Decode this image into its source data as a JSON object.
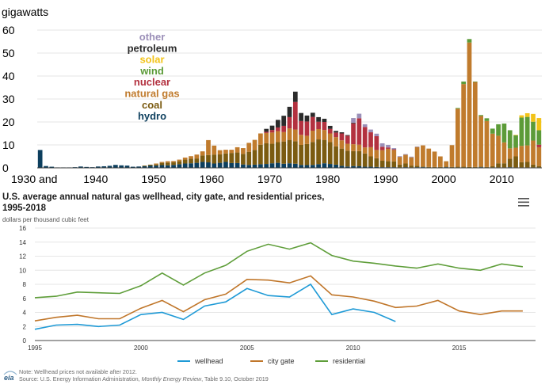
{
  "chart_data": [
    {
      "type": "bar",
      "stacked": true,
      "ylabel": "gigawatts",
      "ylim": [
        0,
        60
      ],
      "yticks": [
        0,
        10,
        20,
        30,
        40,
        50,
        60
      ],
      "xticks": [
        "1930 and",
        "1940",
        "1950",
        "1960",
        "1970",
        "1980",
        "1990",
        "2000",
        "2010"
      ],
      "legend_position": "top-left",
      "grid": "horizontal",
      "categories": [
        1930,
        1931,
        1932,
        1933,
        1934,
        1935,
        1936,
        1937,
        1938,
        1939,
        1940,
        1941,
        1942,
        1943,
        1944,
        1945,
        1946,
        1947,
        1948,
        1949,
        1950,
        1951,
        1952,
        1953,
        1954,
        1955,
        1956,
        1957,
        1958,
        1959,
        1960,
        1961,
        1962,
        1963,
        1964,
        1965,
        1966,
        1967,
        1968,
        1969,
        1970,
        1971,
        1972,
        1973,
        1974,
        1975,
        1976,
        1977,
        1978,
        1979,
        1980,
        1981,
        1982,
        1983,
        1984,
        1985,
        1986,
        1987,
        1988,
        1989,
        1990,
        1991,
        1992,
        1993,
        1994,
        1995,
        1996,
        1997,
        1998,
        1999,
        2000,
        2001,
        2002,
        2003,
        2004,
        2005,
        2006,
        2007,
        2008,
        2009,
        2010,
        2011,
        2012,
        2013,
        2014,
        2015,
        2016
      ],
      "series": [
        {
          "name": "hydro",
          "color": "#0d3f5e",
          "values": [
            7.8,
            0.8,
            0.5,
            0.2,
            0.2,
            0.2,
            0.3,
            0.6,
            0.4,
            0.3,
            0.6,
            0.7,
            0.9,
            1.3,
            1.1,
            1.0,
            0.5,
            0.6,
            0.7,
            1.0,
            1.0,
            1.2,
            1.1,
            1.3,
            1.6,
            1.9,
            2.0,
            2.2,
            2.6,
            2.4,
            1.9,
            2.2,
            2.6,
            2.1,
            2.1,
            1.5,
            1.3,
            1.4,
            1.6,
            1.7,
            2.0,
            2.2,
            1.8,
            2.0,
            1.8,
            1.3,
            1.2,
            1.3,
            1.6,
            2.0,
            1.7,
            1.4,
            0.9,
            0.6,
            0.8,
            0.7,
            0.5,
            0.5,
            0.4,
            0.3,
            0.3,
            0.3,
            0.2,
            0.3,
            0.2,
            0.3,
            0.3,
            0.2,
            0.2,
            0.2,
            0.3,
            0.2,
            0.2,
            0.2,
            0.1,
            0.2,
            0.3,
            0.2,
            0.2,
            0.2,
            0.2,
            0.3,
            0.2,
            0.2,
            0.2,
            0.2,
            0.2
          ]
        },
        {
          "name": "coal",
          "color": "#7b5b11",
          "values": [
            0,
            0,
            0,
            0,
            0,
            0,
            0,
            0,
            0,
            0,
            0,
            0,
            0,
            0,
            0,
            0,
            0,
            0,
            0.3,
            0.4,
            0.5,
            1.0,
            1.2,
            1.2,
            1.3,
            1.7,
            2.0,
            1.9,
            2.8,
            3.2,
            3.9,
            3.7,
            3.7,
            4.4,
            4.6,
            4.6,
            5.7,
            6.4,
            8.5,
            9.0,
            8.5,
            9.0,
            9.7,
            10.2,
            9.8,
            8.7,
            9.2,
            10.0,
            10.8,
            10.2,
            9.5,
            8.0,
            7.5,
            6.9,
            6.5,
            6.6,
            5.8,
            4.5,
            3.8,
            2.8,
            2.6,
            2.5,
            1.2,
            1.6,
            0.8,
            0.6,
            0.3,
            0.2,
            0.2,
            0.2,
            0.2,
            0.2,
            0.3,
            0.3,
            0.3,
            0.2,
            0.3,
            0.2,
            0.5,
            1.8,
            1.8,
            3.7,
            4.8,
            2.3,
            2.4,
            1.2,
            0.6
          ]
        },
        {
          "name": "natural gas",
          "color": "#c07b2d",
          "values": [
            0,
            0,
            0,
            0,
            0,
            0,
            0,
            0,
            0,
            0,
            0,
            0,
            0,
            0,
            0,
            0,
            0,
            0,
            0,
            0,
            0.4,
            0.4,
            0.6,
            0.5,
            0.7,
            0.9,
            1.1,
            1.7,
            1.8,
            6.5,
            3.9,
            1.8,
            1.6,
            1.4,
            2.3,
            2.5,
            3.9,
            4.4,
            4.9,
            4.5,
            4.9,
            4.8,
            4.1,
            5.0,
            5.1,
            4.4,
            3.6,
            4.9,
            4.5,
            4.3,
            3.8,
            4.0,
            3.6,
            3.0,
            3.0,
            2.8,
            2.6,
            4.0,
            3.6,
            4.6,
            5.4,
            5.0,
            3.4,
            3.8,
            3.6,
            8.2,
            9.2,
            8.0,
            6.7,
            4.6,
            2.4,
            9.5,
            25.3,
            36.0,
            54.2,
            37.0,
            22.0,
            20.0,
            14.2,
            12.0,
            9.1,
            4.5,
            3.8,
            7.1,
            7.2,
            10.5,
            8.2
          ]
        },
        {
          "name": "nuclear",
          "color": "#b3313f",
          "values": [
            0,
            0,
            0,
            0,
            0,
            0,
            0,
            0,
            0,
            0,
            0,
            0,
            0,
            0,
            0,
            0,
            0,
            0,
            0,
            0,
            0,
            0,
            0,
            0,
            0,
            0,
            0,
            0,
            0,
            0,
            0,
            0,
            0,
            0,
            0,
            0,
            0,
            0,
            0,
            0.5,
            1.1,
            1.6,
            2.7,
            4.9,
            12.0,
            6.0,
            6.2,
            6.0,
            3.2,
            3.5,
            2.0,
            2.0,
            3.0,
            3.5,
            9.1,
            11.5,
            8.9,
            6.5,
            6.0,
            1.5,
            0.6,
            0.3,
            0,
            0,
            0,
            0,
            0,
            0,
            0,
            0,
            0,
            0,
            0,
            0,
            0,
            0,
            0,
            0,
            0,
            0,
            0,
            0,
            0,
            0,
            0,
            0,
            1.1
          ]
        },
        {
          "name": "wind",
          "color": "#5c9b38",
          "values": [
            0,
            0,
            0,
            0,
            0,
            0,
            0,
            0,
            0,
            0,
            0,
            0,
            0,
            0,
            0,
            0,
            0,
            0,
            0,
            0,
            0,
            0,
            0,
            0,
            0,
            0,
            0,
            0,
            0,
            0,
            0,
            0,
            0,
            0,
            0,
            0,
            0,
            0,
            0,
            0,
            0,
            0,
            0,
            0,
            0,
            0,
            0,
            0,
            0,
            0,
            0,
            0,
            0,
            0,
            0,
            0,
            0,
            0,
            0,
            0,
            0,
            0,
            0,
            0,
            0,
            0,
            0,
            0,
            0,
            0,
            0,
            0,
            0.3,
            1.1,
            1.5,
            0.2,
            0.4,
            1.2,
            2.2,
            5.0,
            8.2,
            7.9,
            5.4,
            12.3,
            12.4,
            8.2,
            6.3
          ]
        },
        {
          "name": "solar",
          "color": "#f2c318",
          "values": [
            0,
            0,
            0,
            0,
            0,
            0,
            0,
            0,
            0,
            0,
            0,
            0,
            0,
            0,
            0,
            0,
            0,
            0,
            0,
            0,
            0,
            0,
            0,
            0,
            0,
            0,
            0,
            0,
            0,
            0,
            0,
            0,
            0,
            0,
            0,
            0,
            0,
            0,
            0,
            0,
            0,
            0,
            0,
            0,
            0,
            0,
            0,
            0,
            0,
            0,
            0,
            0,
            0,
            0,
            0,
            0,
            0,
            0,
            0,
            0,
            0,
            0,
            0,
            0,
            0,
            0,
            0,
            0,
            0,
            0,
            0,
            0,
            0,
            0,
            0,
            0,
            0,
            0,
            0,
            0,
            0,
            0,
            0.2,
            1.0,
            1.6,
            3.4,
            5.3
          ]
        },
        {
          "name": "petroleum",
          "color": "#2b2b2b",
          "values": [
            0,
            0,
            0,
            0,
            0,
            0,
            0,
            0,
            0,
            0,
            0,
            0,
            0,
            0,
            0,
            0,
            0,
            0,
            0,
            0,
            0,
            0,
            0,
            0,
            0,
            0,
            0,
            0,
            0,
            0,
            0,
            0,
            0,
            0,
            0,
            0,
            0,
            0,
            0,
            1.3,
            1.9,
            3.3,
            4.4,
            4.5,
            4.5,
            3.5,
            2.6,
            1.8,
            2.0,
            1.4,
            1.3,
            0.7,
            0.5,
            0.3,
            0.3,
            0,
            0,
            0,
            0,
            0,
            0,
            0,
            0,
            0,
            0,
            0,
            0,
            0,
            0,
            0,
            0,
            0,
            0,
            0,
            0,
            0,
            0,
            0,
            0,
            0,
            0,
            0,
            0,
            0,
            0,
            0,
            0
          ]
        },
        {
          "name": "other",
          "color": "#9b8fb8",
          "values": [
            0,
            0,
            0,
            0,
            0,
            0,
            0,
            0,
            0,
            0,
            0,
            0,
            0,
            0,
            0,
            0,
            0,
            0,
            0,
            0,
            0,
            0,
            0,
            0,
            0,
            0,
            0,
            0,
            0,
            0,
            0,
            0,
            0,
            0,
            0,
            0,
            0,
            0,
            0,
            0,
            0,
            0,
            0,
            0,
            0,
            0,
            0,
            0,
            0,
            0,
            0,
            0,
            0,
            0,
            2.0,
            2.0,
            1.2,
            1.2,
            1.1,
            1.5,
            1.1,
            0.5,
            0.3,
            0.3,
            0.3,
            0.2,
            0,
            0,
            0,
            0,
            0,
            0,
            0,
            0,
            0,
            0,
            0,
            0,
            0,
            0,
            0,
            0,
            0,
            0,
            0,
            0,
            0
          ]
        }
      ]
    },
    {
      "type": "line",
      "title": "U.S. average annual natural gas wellhead, city gate, and residential prices, 1995-2018",
      "subtitle": "dollars per thousand cubic feet",
      "xlim": [
        1995,
        2018.6
      ],
      "ylim": [
        0,
        16
      ],
      "yticks": [
        0,
        2,
        4,
        6,
        8,
        10,
        12,
        14,
        16
      ],
      "xticks": [
        1995,
        2000,
        2005,
        2010,
        2015
      ],
      "legend_position": "bottom",
      "grid": "horizontal",
      "series": [
        {
          "name": "wellhead",
          "color": "#1f9ad6",
          "x": [
            1995,
            1996,
            1997,
            1998,
            1999,
            2000,
            2001,
            2002,
            2003,
            2004,
            2005,
            2006,
            2007,
            2008,
            2009,
            2010,
            2011,
            2012
          ],
          "values": [
            1.6,
            2.2,
            2.3,
            2.0,
            2.2,
            3.7,
            4.0,
            3.0,
            4.9,
            5.5,
            7.4,
            6.4,
            6.2,
            8.0,
            3.7,
            4.5,
            4.0,
            2.7
          ]
        },
        {
          "name": "city gate",
          "color": "#c0762a",
          "x": [
            1995,
            1996,
            1997,
            1998,
            1999,
            2000,
            2001,
            2002,
            2003,
            2004,
            2005,
            2006,
            2007,
            2008,
            2009,
            2010,
            2011,
            2012,
            2013,
            2014,
            2015,
            2016,
            2017,
            2018
          ],
          "values": [
            2.8,
            3.3,
            3.6,
            3.1,
            3.1,
            4.6,
            5.7,
            4.1,
            5.8,
            6.6,
            8.7,
            8.6,
            8.2,
            9.2,
            6.5,
            6.2,
            5.6,
            4.7,
            4.9,
            5.7,
            4.2,
            3.7,
            4.2,
            4.2
          ]
        },
        {
          "name": "residential",
          "color": "#5f9e3a",
          "x": [
            1995,
            1996,
            1997,
            1998,
            1999,
            2000,
            2001,
            2002,
            2003,
            2004,
            2005,
            2006,
            2007,
            2008,
            2009,
            2010,
            2011,
            2012,
            2013,
            2014,
            2015,
            2016,
            2017,
            2018
          ],
          "values": [
            6.1,
            6.3,
            6.9,
            6.8,
            6.7,
            7.8,
            9.6,
            7.9,
            9.6,
            10.7,
            12.7,
            13.7,
            13.0,
            13.9,
            12.1,
            11.3,
            11.0,
            10.6,
            10.3,
            10.9,
            10.3,
            10.0,
            10.9,
            10.5
          ]
        }
      ]
    }
  ],
  "notes": {
    "note": "Note: Wellhead prices not available after 2012.",
    "source_prefix": "Source: U.S. Energy Information Administration, ",
    "source_title": "Monthly Energy Review",
    "source_suffix": ", Table 9.10, October 2019"
  },
  "logo": {
    "text": "eia"
  },
  "menu": {
    "icon": "hamburger-menu-icon"
  }
}
